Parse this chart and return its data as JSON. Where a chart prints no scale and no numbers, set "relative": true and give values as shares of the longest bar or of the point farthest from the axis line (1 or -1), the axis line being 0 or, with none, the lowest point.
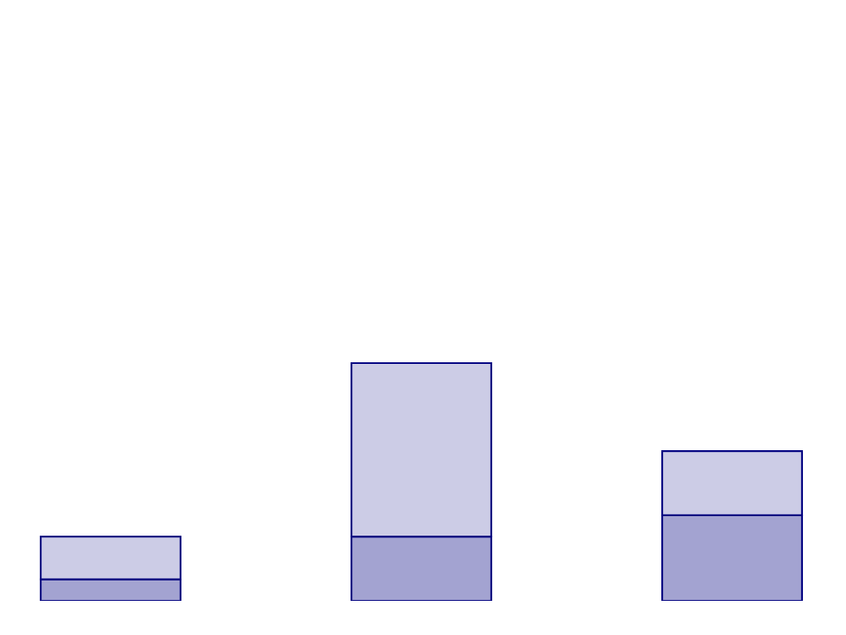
{
  "chart_data": {
    "type": "bar",
    "relative": true,
    "stacked": true,
    "categories": [
      null,
      null,
      null
    ],
    "series": [
      {
        "color": "#a3a3d1",
        "values": [
          0.09,
          0.27,
          0.36
        ]
      },
      {
        "color": "#cccce6",
        "values": [
          0.18,
          0.73,
          0.27
        ]
      }
    ],
    "legend": false
  }
}
